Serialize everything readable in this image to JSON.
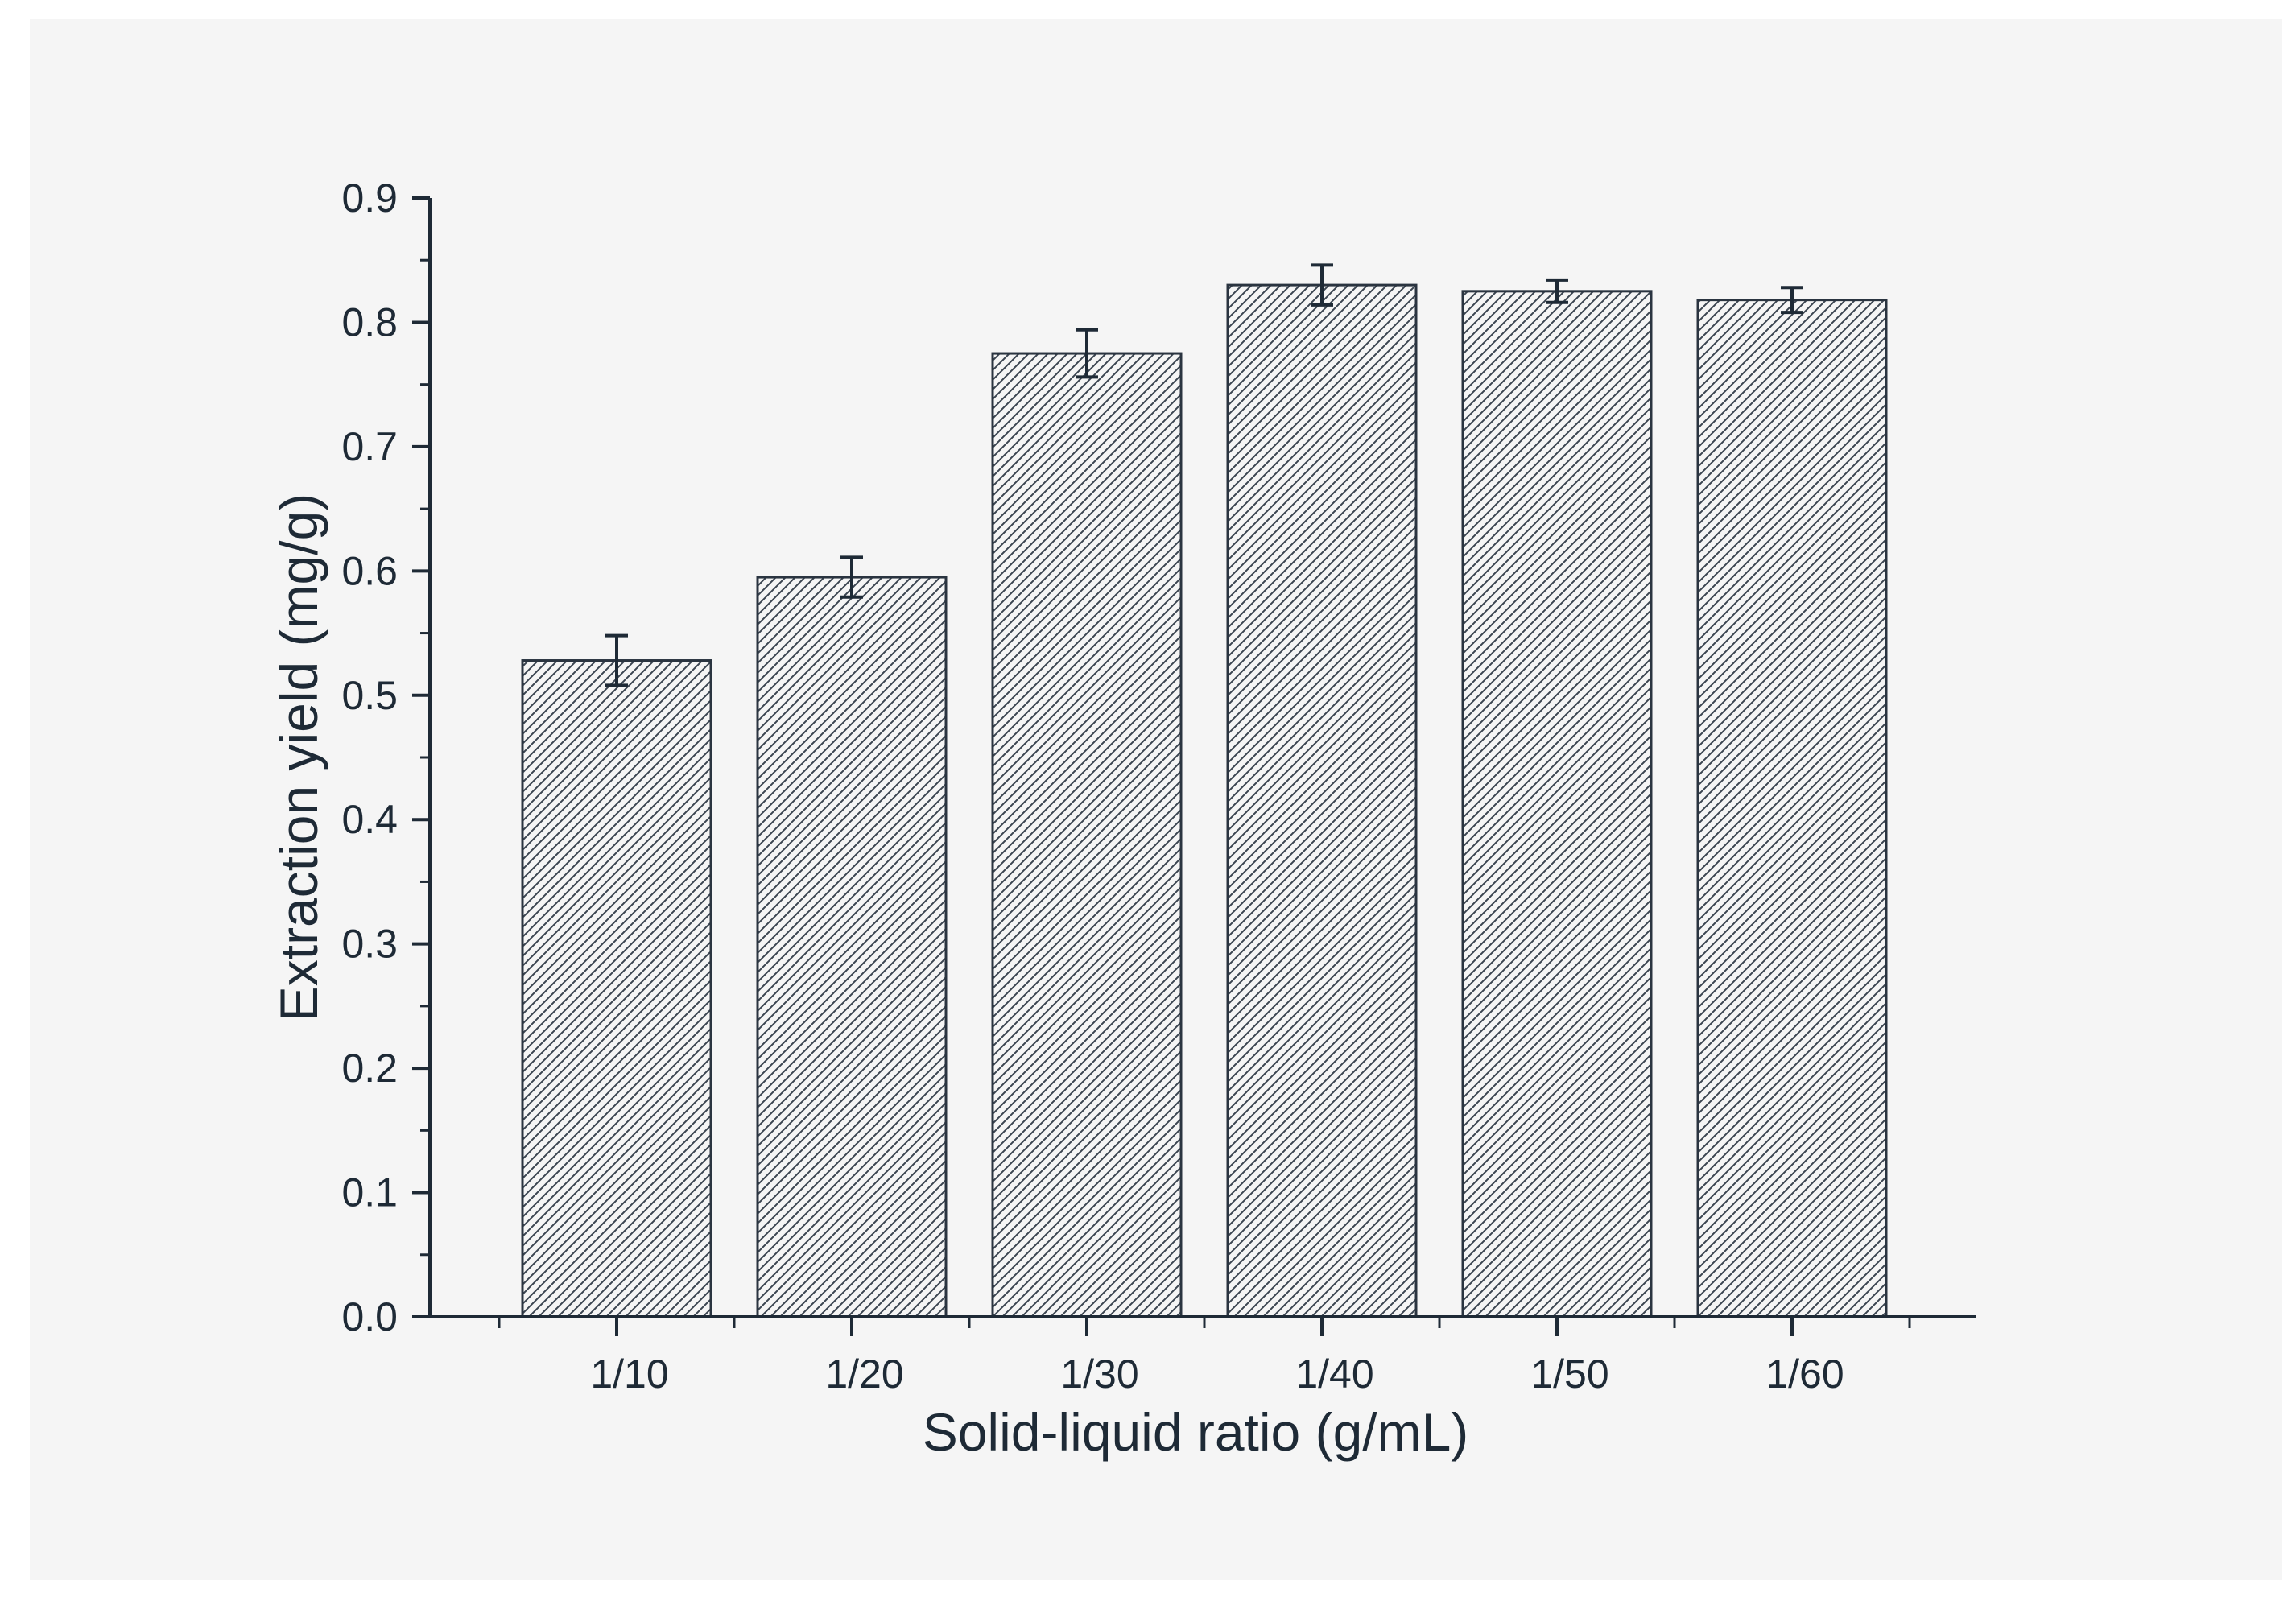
{
  "chart_data": {
    "type": "bar",
    "title": "",
    "xlabel": "Solid-liquid ratio (g/mL)",
    "ylabel": "Extraction yield (mg/g)",
    "categories": [
      "1/10",
      "1/20",
      "1/30",
      "1/40",
      "1/50",
      "1/60"
    ],
    "values": [
      0.528,
      0.595,
      0.775,
      0.83,
      0.825,
      0.818
    ],
    "errors": [
      0.02,
      0.016,
      0.019,
      0.016,
      0.009,
      0.01
    ],
    "ylim": [
      0.0,
      0.9
    ],
    "yticks": [
      0.0,
      0.1,
      0.2,
      0.3,
      0.4,
      0.5,
      0.6,
      0.7,
      0.8,
      0.9
    ],
    "ytick_labels": [
      "0.0",
      "0.1",
      "0.2",
      "0.3",
      "0.4",
      "0.5",
      "0.6",
      "0.7",
      "0.8",
      "0.9"
    ],
    "grid": false,
    "legend": "none",
    "bar_fill": "hatched",
    "colors": {
      "bar_outline": "#2a3440",
      "hatch": "#3a4450",
      "axis": "#1e2a36",
      "text": "#1e2a36",
      "background": "#f5f5f5"
    }
  }
}
